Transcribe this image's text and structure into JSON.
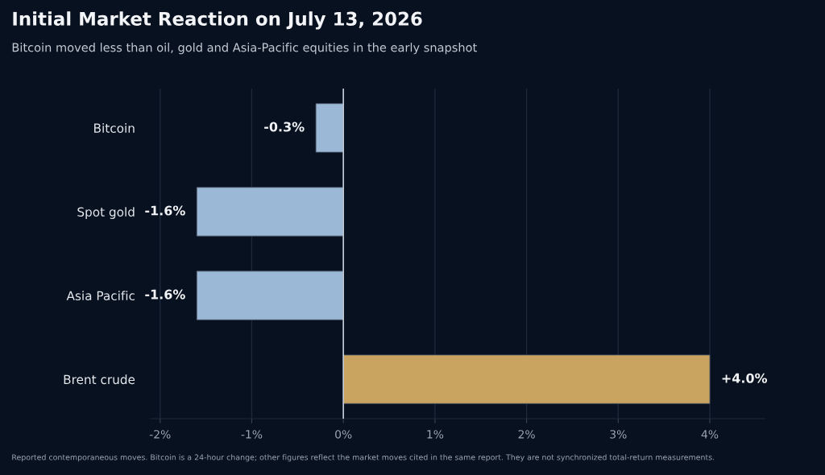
{
  "chart_data": {
    "type": "bar",
    "orientation": "horizontal",
    "title": "Initial Market Reaction on July 13, 2026",
    "subtitle": "Bitcoin moved less than oil, gold and Asia-Pacific equities in the early snapshot",
    "categories": [
      "Bitcoin",
      "Spot gold",
      "Asia Pacific",
      "Brent crude"
    ],
    "values": [
      -0.3,
      -1.6,
      -1.6,
      4.0
    ],
    "colors": [
      "#9bb9d7",
      "#9bb9d7",
      "#9bb9d7",
      "#c9a360"
    ],
    "value_labels": [
      "-0.3%",
      "-1.6%",
      "-1.6%",
      "+4.0%"
    ],
    "xlim": [
      -2.1,
      4.6
    ],
    "xticks": [
      {
        "value": -2,
        "label": "-2%"
      },
      {
        "value": -1,
        "label": "-1%"
      },
      {
        "value": 0,
        "label": "0%"
      },
      {
        "value": 1,
        "label": "1%"
      },
      {
        "value": 2,
        "label": "2%"
      },
      {
        "value": 3,
        "label": "3%"
      },
      {
        "value": 4,
        "label": "4%"
      }
    ],
    "ref_lines": [
      {
        "axis": "x",
        "value": 0,
        "color": "#c3cbd6"
      }
    ],
    "grid": "x",
    "legend": false,
    "annotations": [
      "Reported contemporaneous moves. Bitcoin is a 24-hour change; other figures reflect the market moves cited in the same report. They are not synchronized total-return measurements."
    ]
  }
}
